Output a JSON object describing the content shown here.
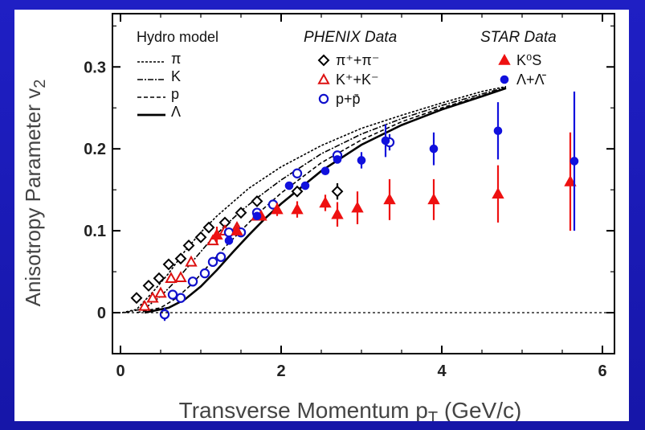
{
  "chart_data": {
    "type": "scatter",
    "xlabel": "Transverse Momentum p",
    "xlabel_sub": "T",
    "xlabel_unit": "(GeV/c)",
    "ylabel": "Anisotropy Parameter v",
    "ylabel_sub": "2",
    "xlim": [
      -0.1,
      6.15
    ],
    "ylim": [
      -0.05,
      0.365
    ],
    "x_ticks": [
      0,
      2,
      4,
      6
    ],
    "x_tick_labels": [
      "0",
      "2",
      "4",
      "6"
    ],
    "y_ticks": [
      0,
      0.1,
      0.2,
      0.3
    ],
    "y_tick_labels": [
      "0",
      "0.1",
      "0.2",
      "0.3"
    ],
    "zero_line": true,
    "grid": false,
    "legend_groups": [
      {
        "title": "Hydro model",
        "italic": false,
        "entries": [
          {
            "label": "π",
            "dash": "3,2"
          },
          {
            "label": "K",
            "dash": "7,2,2,2"
          },
          {
            "label": "p",
            "dash": "5,3"
          },
          {
            "label": "Λ",
            "dash": "none"
          }
        ]
      },
      {
        "title": "PHENIX Data",
        "italic": true,
        "entries": [
          {
            "label": "π⁺+π⁻",
            "marker": "diamond-open",
            "color": "#000000"
          },
          {
            "label": "K⁺+K⁻",
            "marker": "triangle-open",
            "color": "#dd1111"
          },
          {
            "label": "p+p̄",
            "marker": "circle-open",
            "color": "#1111cc"
          }
        ]
      },
      {
        "title": "STAR Data",
        "italic": true,
        "entries": [
          {
            "label": "K⁰S",
            "marker": "triangle-filled",
            "color": "#ee1111"
          },
          {
            "label": "Λ+Λ̄",
            "marker": "circle-filled",
            "color": "#1111dd"
          }
        ]
      }
    ],
    "hydro_curves": [
      {
        "name": "π",
        "dash": "3,2",
        "points": [
          [
            0.02,
            0
          ],
          [
            0.2,
            0.004
          ],
          [
            0.4,
            0.025
          ],
          [
            0.6,
            0.048
          ],
          [
            0.8,
            0.075
          ],
          [
            1.0,
            0.098
          ],
          [
            1.2,
            0.118
          ],
          [
            1.4,
            0.135
          ],
          [
            1.6,
            0.152
          ],
          [
            2.0,
            0.178
          ],
          [
            2.5,
            0.204
          ],
          [
            3.0,
            0.225
          ],
          [
            3.5,
            0.241
          ],
          [
            4.0,
            0.256
          ],
          [
            4.5,
            0.27
          ],
          [
            4.8,
            0.276
          ]
        ]
      },
      {
        "name": "K",
        "dash": "7,2,2,2",
        "points": [
          [
            0.05,
            0
          ],
          [
            0.3,
            0.005
          ],
          [
            0.5,
            0.02
          ],
          [
            0.7,
            0.04
          ],
          [
            0.9,
            0.063
          ],
          [
            1.1,
            0.086
          ],
          [
            1.3,
            0.106
          ],
          [
            1.5,
            0.124
          ],
          [
            1.7,
            0.14
          ],
          [
            2.0,
            0.162
          ],
          [
            2.5,
            0.194
          ],
          [
            3.0,
            0.218
          ],
          [
            3.5,
            0.237
          ],
          [
            4.0,
            0.253
          ],
          [
            4.5,
            0.267
          ],
          [
            4.8,
            0.275
          ]
        ]
      },
      {
        "name": "p",
        "dash": "5,3",
        "points": [
          [
            0.2,
            0
          ],
          [
            0.5,
            0.006
          ],
          [
            0.7,
            0.018
          ],
          [
            0.9,
            0.036
          ],
          [
            1.1,
            0.058
          ],
          [
            1.3,
            0.08
          ],
          [
            1.5,
            0.1
          ],
          [
            1.7,
            0.12
          ],
          [
            2.0,
            0.146
          ],
          [
            2.5,
            0.183
          ],
          [
            3.0,
            0.211
          ],
          [
            3.5,
            0.233
          ],
          [
            4.0,
            0.25
          ],
          [
            4.5,
            0.265
          ],
          [
            4.8,
            0.274
          ]
        ]
      },
      {
        "name": "Λ",
        "dash": "none",
        "points": [
          [
            0.3,
            0
          ],
          [
            0.6,
            0.006
          ],
          [
            0.8,
            0.016
          ],
          [
            1.0,
            0.032
          ],
          [
            1.2,
            0.052
          ],
          [
            1.4,
            0.074
          ],
          [
            1.6,
            0.095
          ],
          [
            1.8,
            0.115
          ],
          [
            2.0,
            0.133
          ],
          [
            2.5,
            0.173
          ],
          [
            3.0,
            0.205
          ],
          [
            3.5,
            0.229
          ],
          [
            4.0,
            0.248
          ],
          [
            4.5,
            0.264
          ],
          [
            4.8,
            0.274
          ]
        ]
      }
    ],
    "series": [
      {
        "name": "π⁺+π⁻",
        "marker": "diamond-open",
        "color": "#000000",
        "points": [
          [
            0.2,
            0.018,
            0
          ],
          [
            0.35,
            0.033,
            0
          ],
          [
            0.48,
            0.042,
            0
          ],
          [
            0.6,
            0.059,
            0
          ],
          [
            0.75,
            0.066,
            0
          ],
          [
            0.85,
            0.082,
            0
          ],
          [
            1.0,
            0.092,
            0
          ],
          [
            1.1,
            0.104,
            0
          ],
          [
            1.3,
            0.11,
            0
          ],
          [
            1.5,
            0.122,
            0
          ],
          [
            1.7,
            0.136,
            0
          ],
          [
            2.2,
            0.148,
            0.006
          ],
          [
            2.7,
            0.148,
            0.01
          ]
        ]
      },
      {
        "name": "K⁺+K⁻",
        "marker": "triangle-open",
        "color": "#dd1111",
        "points": [
          [
            0.3,
            0.008,
            0
          ],
          [
            0.4,
            0.018,
            0
          ],
          [
            0.5,
            0.024,
            0
          ],
          [
            0.63,
            0.042,
            0
          ],
          [
            0.75,
            0.043,
            0
          ],
          [
            0.88,
            0.062,
            0
          ],
          [
            1.15,
            0.088,
            0
          ],
          [
            1.3,
            0.1,
            0
          ],
          [
            1.45,
            0.104,
            0
          ],
          [
            1.7,
            0.118,
            0
          ]
        ]
      },
      {
        "name": "p+p̄",
        "marker": "circle-open",
        "color": "#1111cc",
        "points": [
          [
            0.55,
            -0.002,
            0.008
          ],
          [
            0.65,
            0.022,
            0
          ],
          [
            0.75,
            0.018,
            0
          ],
          [
            0.9,
            0.038,
            0
          ],
          [
            1.05,
            0.048,
            0
          ],
          [
            1.15,
            0.062,
            0
          ],
          [
            1.25,
            0.068,
            0
          ],
          [
            1.35,
            0.098,
            0
          ],
          [
            1.5,
            0.098,
            0
          ],
          [
            1.7,
            0.122,
            0
          ],
          [
            1.9,
            0.132,
            0
          ],
          [
            2.2,
            0.17,
            0
          ],
          [
            2.7,
            0.192,
            0
          ],
          [
            3.35,
            0.208,
            0.01
          ]
        ]
      },
      {
        "name": "K⁰S",
        "marker": "triangle-filled",
        "color": "#ee1111",
        "points": [
          [
            1.2,
            0.095,
            0.01
          ],
          [
            1.45,
            0.1,
            0
          ],
          [
            1.75,
            0.118,
            0
          ],
          [
            1.95,
            0.126,
            0.008
          ],
          [
            2.2,
            0.126,
            0.01
          ],
          [
            2.55,
            0.134,
            0.01
          ],
          [
            2.7,
            0.12,
            0.015
          ],
          [
            2.95,
            0.128,
            0.02
          ],
          [
            3.35,
            0.138,
            0.025
          ],
          [
            3.9,
            0.138,
            0.025
          ],
          [
            4.7,
            0.145,
            0.035
          ],
          [
            5.6,
            0.16,
            0.06
          ]
        ]
      },
      {
        "name": "Λ+Λ̄",
        "marker": "circle-filled",
        "color": "#1111dd",
        "points": [
          [
            1.35,
            0.088,
            0
          ],
          [
            1.7,
            0.118,
            0
          ],
          [
            2.1,
            0.155,
            0
          ],
          [
            2.3,
            0.155,
            0
          ],
          [
            2.55,
            0.173,
            0
          ],
          [
            2.7,
            0.187,
            0
          ],
          [
            3.0,
            0.186,
            0.01
          ],
          [
            3.3,
            0.21,
            0.02
          ],
          [
            3.9,
            0.2,
            0.02
          ],
          [
            4.7,
            0.222,
            0.035
          ],
          [
            5.65,
            0.185,
            0.085
          ]
        ]
      }
    ]
  }
}
